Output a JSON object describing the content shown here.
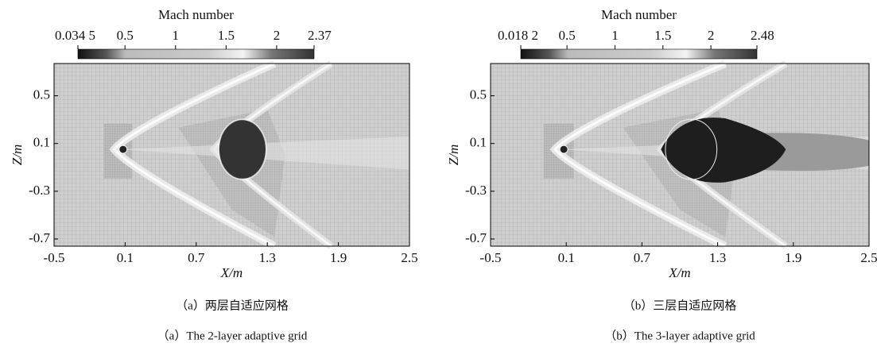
{
  "chart_data": [
    {
      "type": "contour",
      "colorbar_title": "Mach number",
      "colorbar_lim": [
        0.0345,
        2.37
      ],
      "colorbar_ticks": [
        {
          "value": 0.0345,
          "label": "0.034 5"
        },
        0.5,
        1,
        1.5,
        2,
        2.37
      ],
      "xlabel": "X/m",
      "ylabel": "Z/m",
      "xlim": [
        -0.5,
        2.5
      ],
      "xticks": [
        -0.5,
        0.1,
        0.7,
        1.3,
        1.9,
        2.5
      ],
      "ylim": [
        -0.76,
        0.77
      ],
      "yticks": [
        0.5,
        0.1,
        -0.3,
        -0.7
      ],
      "caption": "（a）两层自适应网格",
      "caption_en": "（a）The 2-layer adaptive grid"
    },
    {
      "type": "contour",
      "colorbar_title": "Mach number",
      "colorbar_lim": [
        0.0182,
        2.48
      ],
      "colorbar_ticks": [
        {
          "value": 0.0182,
          "label": "0.018 2"
        },
        0.5,
        1,
        1.5,
        2,
        2.48
      ],
      "xlabel": "X/m",
      "ylabel": "Z/m",
      "xlim": [
        -0.5,
        2.5
      ],
      "xticks": [
        -0.5,
        0.1,
        0.7,
        1.3,
        1.9,
        2.5
      ],
      "ylim": [
        -0.76,
        0.77
      ],
      "yticks": [
        0.5,
        0.1,
        -0.3,
        -0.7
      ],
      "caption": "（b）三层自适应网格",
      "caption_en": "（b）The 3-layer adaptive grid"
    }
  ]
}
